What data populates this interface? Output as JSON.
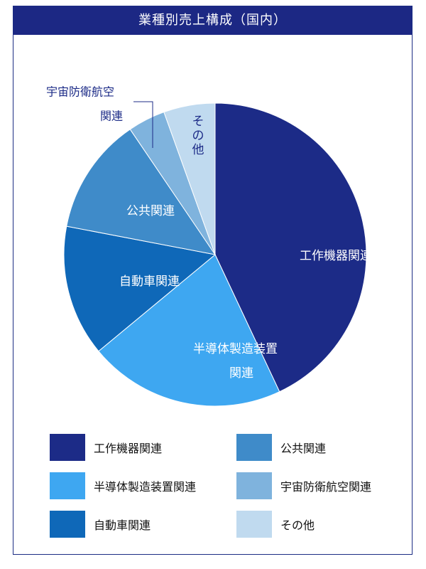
{
  "title": "業種別売上構成（国内）",
  "chart_data": {
    "type": "pie",
    "title": "業種別売上構成（国内）",
    "legend_position": "bottom",
    "slices": [
      {
        "label": "工作機器関連",
        "value": 43.0,
        "color": "#1c2b87",
        "label_lines": [
          "工作機器関連"
        ],
        "label_color": "#ffffff"
      },
      {
        "label": "半導体製造装置関連",
        "value": 21.0,
        "color": "#3ea7f1",
        "label_lines": [
          "半導体製造装置",
          "関連"
        ],
        "label_color": "#ffffff"
      },
      {
        "label": "自動車関連",
        "value": 14.0,
        "color": "#0f68b8",
        "label_lines": [
          "自動車関連"
        ],
        "label_color": "#ffffff"
      },
      {
        "label": "公共関連",
        "value": 12.5,
        "color": "#3f8bc9",
        "label_lines": [
          "公共関連"
        ],
        "label_color": "#ffffff"
      },
      {
        "label": "宇宙防衛航空関連",
        "value": 4.0,
        "color": "#7fb3dd",
        "label_lines": [
          "宇宙防衛航空",
          "関連"
        ],
        "label_color": "#1c2b87"
      },
      {
        "label": "その他",
        "value": 5.5,
        "color": "#c0daef",
        "label_lines": [
          "その他"
        ],
        "label_color": "#1c2b87"
      }
    ]
  }
}
